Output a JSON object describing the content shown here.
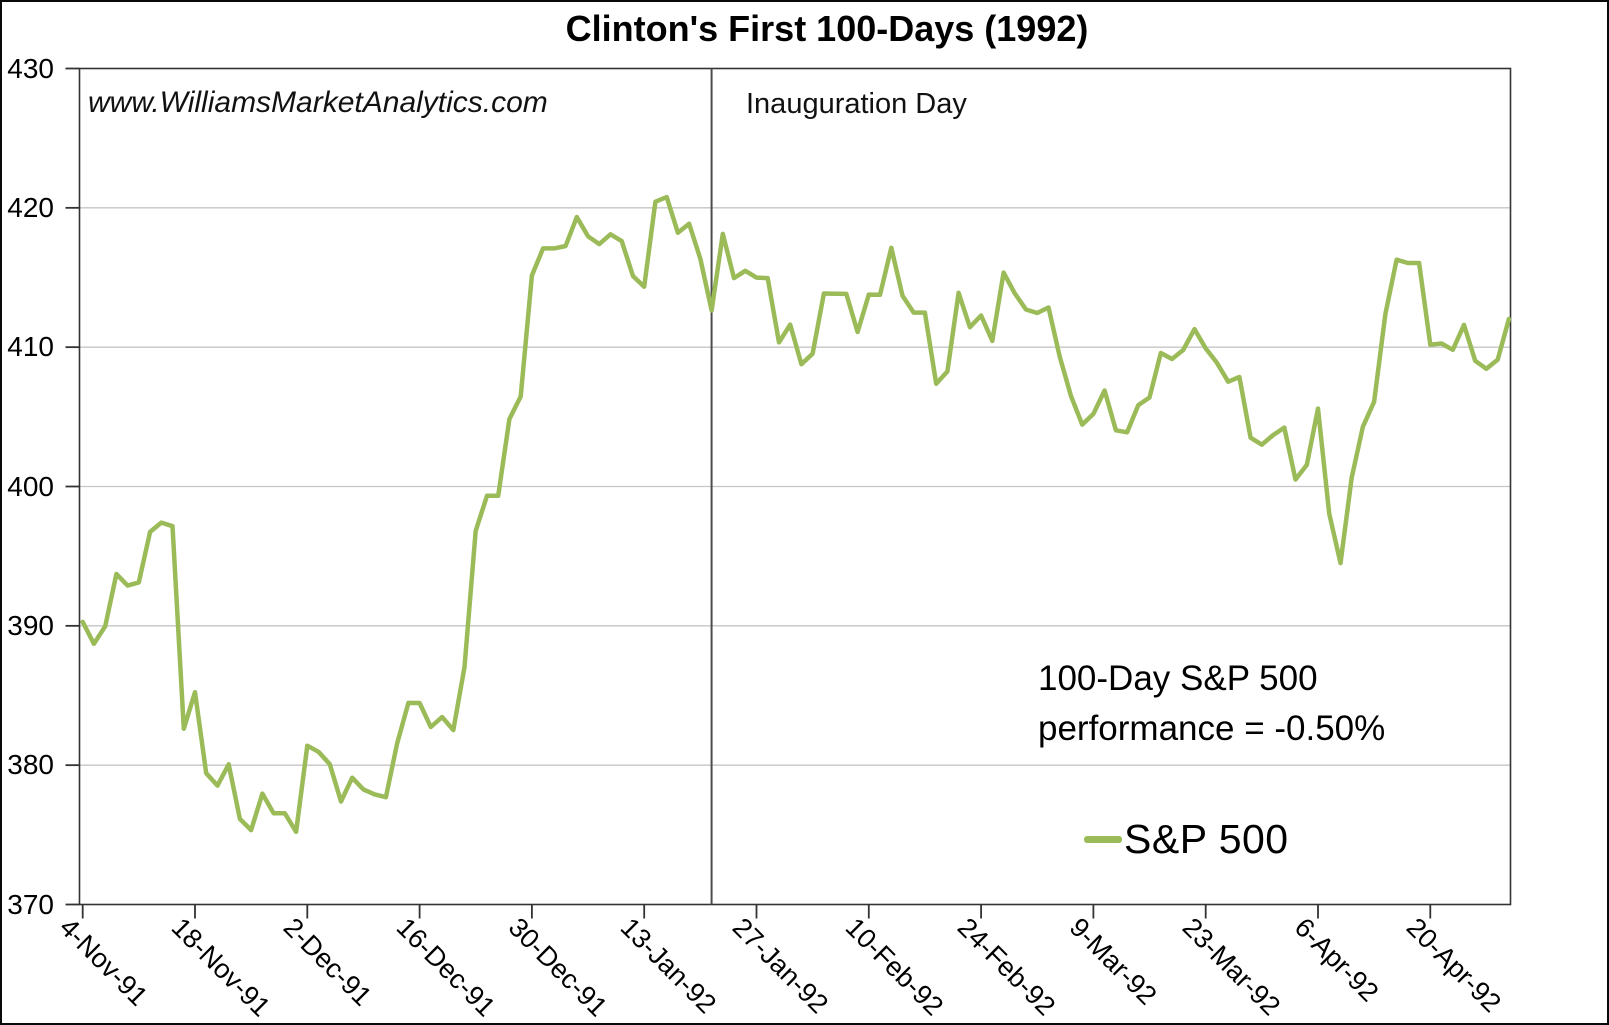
{
  "title": "Clinton's First 100-Days (1992)",
  "watermark": "www.WilliamsMarketAnalytics.com",
  "annotations": {
    "inauguration_label": "Inauguration Day",
    "performance_line1": "100-Day S&P 500",
    "performance_line2": "performance = -0.50%"
  },
  "legend": {
    "series_label": "S&P 500"
  },
  "colors": {
    "series_line": "#9BBB59",
    "gridline": "#C6C6C6",
    "axis": "#333333",
    "vline": "#4d4d4d"
  },
  "chart_data": {
    "type": "line",
    "title": "Clinton's First 100-Days (1992)",
    "xlabel": "",
    "ylabel": "",
    "ylim": [
      370,
      430
    ],
    "y_tick_interval": 10,
    "y_tick_labels": [
      "430",
      "420",
      "410",
      "400",
      "390",
      "380",
      "370"
    ],
    "grid": "horizontal",
    "legend_position": "inside-bottom-right",
    "x_tick_labels": [
      "4-Nov-91",
      "18-Nov-91",
      "2-Dec-91",
      "16-Dec-91",
      "30-Dec-91",
      "13-Jan-92",
      "27-Jan-92",
      "10-Feb-92",
      "24-Feb-92",
      "9-Mar-92",
      "23-Mar-92",
      "6-Apr-92",
      "20-Apr-92"
    ],
    "x_ticks_every_n_points": 10,
    "vline": {
      "label": "Inauguration Day",
      "at_point_index": 56
    },
    "series": [
      {
        "name": "S&P 500",
        "color": "#9BBB59",
        "values": [
          390.28,
          388.71,
          389.97,
          393.72,
          392.89,
          393.12,
          396.74,
          397.41,
          397.15,
          382.62,
          385.24,
          379.42,
          378.53,
          380.06,
          376.14,
          375.34,
          377.96,
          376.55,
          376.55,
          375.22,
          381.4,
          380.96,
          380.07,
          377.39,
          379.1,
          378.26,
          377.9,
          377.7,
          381.55,
          384.47,
          384.46,
          382.74,
          383.46,
          382.52,
          387.04,
          396.82,
          399.33,
          399.33,
          404.84,
          406.46,
          415.14,
          417.09,
          417.09,
          417.26,
          419.34,
          417.96,
          417.4,
          418.1,
          417.61,
          415.1,
          414.34,
          420.44,
          420.77,
          418.21,
          418.86,
          416.36,
          412.64,
          418.13,
          414.96,
          415.48,
          414.99,
          414.96,
          410.34,
          411.62,
          408.78,
          409.53,
          413.85,
          413.84,
          413.82,
          411.09,
          413.77,
          413.76,
          417.13,
          413.69,
          412.48,
          412.48,
          407.38,
          408.26,
          413.9,
          411.43,
          412.27,
          410.45,
          415.35,
          413.86,
          412.7,
          412.45,
          412.85,
          409.33,
          406.51,
          404.44,
          405.21,
          406.89,
          404.03,
          403.89,
          405.84,
          406.39,
          409.58,
          409.15,
          409.8,
          411.3,
          409.91,
          408.88,
          407.52,
          407.86,
          403.5,
          403.0,
          403.69,
          404.23,
          400.5,
          401.55,
          405.59,
          398.06,
          394.5,
          400.64,
          404.29,
          406.08,
          412.39,
          416.28,
          416.04,
          416.04,
          410.18,
          410.26,
          409.81,
          411.6,
          409.02,
          408.45,
          409.11,
          412.02
        ]
      }
    ]
  }
}
